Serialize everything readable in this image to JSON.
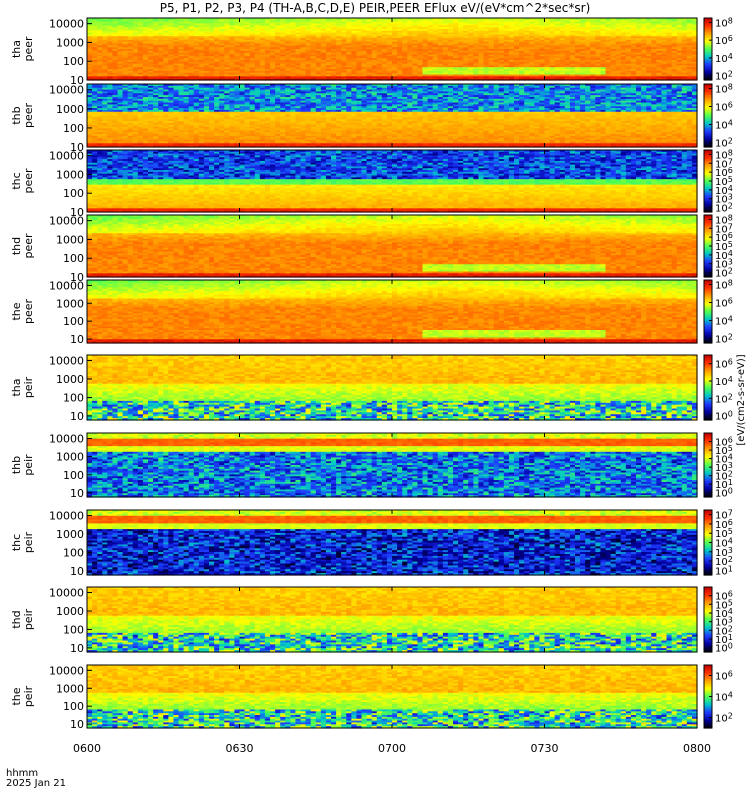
{
  "figure": {
    "title": "P5, P1, P2, P3, P4 (TH-A,B,C,D,E) PEIR,PEER EFlux eV/(eV*cm^2*sec*sr)",
    "footer_line1": "hhmm",
    "footer_line2": "2025 Jan 21",
    "colorbar_unit_label": "[eV/(cm2-s-sr-eV)]"
  },
  "chart_data": {
    "type": "heatmap",
    "x": {
      "label": "hhmm",
      "date": "2025 Jan 21",
      "ticks": [
        "0600",
        "0630",
        "0700",
        "0730",
        "0800"
      ]
    },
    "y_scale": "log",
    "y_ticks": [
      "10",
      "100",
      "1000",
      "10000"
    ],
    "colormap": [
      "#000000",
      "#0000a0",
      "#1e3cff",
      "#00c8c8",
      "#50ff50",
      "#ffff00",
      "#ffa000",
      "#ff3000",
      "#c00000"
    ],
    "panels": [
      {
        "probe": "tha",
        "product": "peer",
        "ylabel": "tha peer",
        "ylim": [
          10,
          20000
        ],
        "colorbar_ticks": [
          "10^8",
          "10^6",
          "10^4",
          "10^2"
        ],
        "colorbar_range_log10": [
          1.5,
          8.5
        ]
      },
      {
        "probe": "thb",
        "product": "peer",
        "ylabel": "thb peer",
        "ylim": [
          10,
          20000
        ],
        "colorbar_ticks": [
          "10^8",
          "10^6",
          "10^4",
          "10^2"
        ],
        "colorbar_range_log10": [
          1.5,
          8.5
        ]
      },
      {
        "probe": "thc",
        "product": "peer",
        "ylabel": "thc peer",
        "ylim": [
          10,
          20000
        ],
        "colorbar_ticks": [
          "10^8",
          "10^7",
          "10^6",
          "10^5",
          "10^4",
          "10^3",
          "10^2"
        ],
        "colorbar_range_log10": [
          1.5,
          8.5
        ]
      },
      {
        "probe": "thd",
        "product": "peer",
        "ylabel": "thd peer",
        "ylim": [
          10,
          20000
        ],
        "colorbar_ticks": [
          "10^8",
          "10^7",
          "10^6",
          "10^5",
          "10^4",
          "10^3",
          "10^2"
        ],
        "colorbar_range_log10": [
          1.5,
          8.5
        ]
      },
      {
        "probe": "the",
        "product": "peer",
        "ylabel": "the peer",
        "ylim": [
          6,
          20000
        ],
        "colorbar_ticks": [
          "10^8",
          "10^6",
          "10^4",
          "10^2"
        ],
        "colorbar_range_log10": [
          1.5,
          8.5
        ]
      },
      {
        "probe": "tha",
        "product": "peir",
        "ylabel": "tha peir",
        "ylim": [
          6,
          20000
        ],
        "colorbar_ticks": [
          "10^6",
          "10^4",
          "10^2",
          "10^0"
        ],
        "colorbar_range_log10": [
          -0.5,
          7
        ]
      },
      {
        "probe": "thb",
        "product": "peir",
        "ylabel": "thb peir",
        "ylim": [
          6,
          20000
        ],
        "colorbar_ticks": [
          "10^6",
          "10^5",
          "10^4",
          "10^3",
          "10^2",
          "10^1",
          "10^0"
        ],
        "colorbar_range_log10": [
          -0.5,
          7
        ]
      },
      {
        "probe": "thc",
        "product": "peir",
        "ylabel": "thc peir",
        "ylim": [
          6,
          20000
        ],
        "colorbar_ticks": [
          "10^7",
          "10^6",
          "10^5",
          "10^4",
          "10^3",
          "10^2",
          "10^1"
        ],
        "colorbar_range_log10": [
          0.5,
          7.5
        ]
      },
      {
        "probe": "thd",
        "product": "peir",
        "ylabel": "thd peir",
        "ylim": [
          6,
          20000
        ],
        "colorbar_ticks": [
          "10^6",
          "10^5",
          "10^4",
          "10^3",
          "10^2",
          "10^1",
          "10^0"
        ],
        "colorbar_range_log10": [
          -0.5,
          7
        ]
      },
      {
        "probe": "the",
        "product": "peir",
        "ylabel": "the peir",
        "ylim": [
          6,
          20000
        ],
        "colorbar_ticks": [
          "10^6",
          "10^4",
          "10^2"
        ],
        "colorbar_range_log10": [
          1,
          7
        ]
      }
    ]
  }
}
